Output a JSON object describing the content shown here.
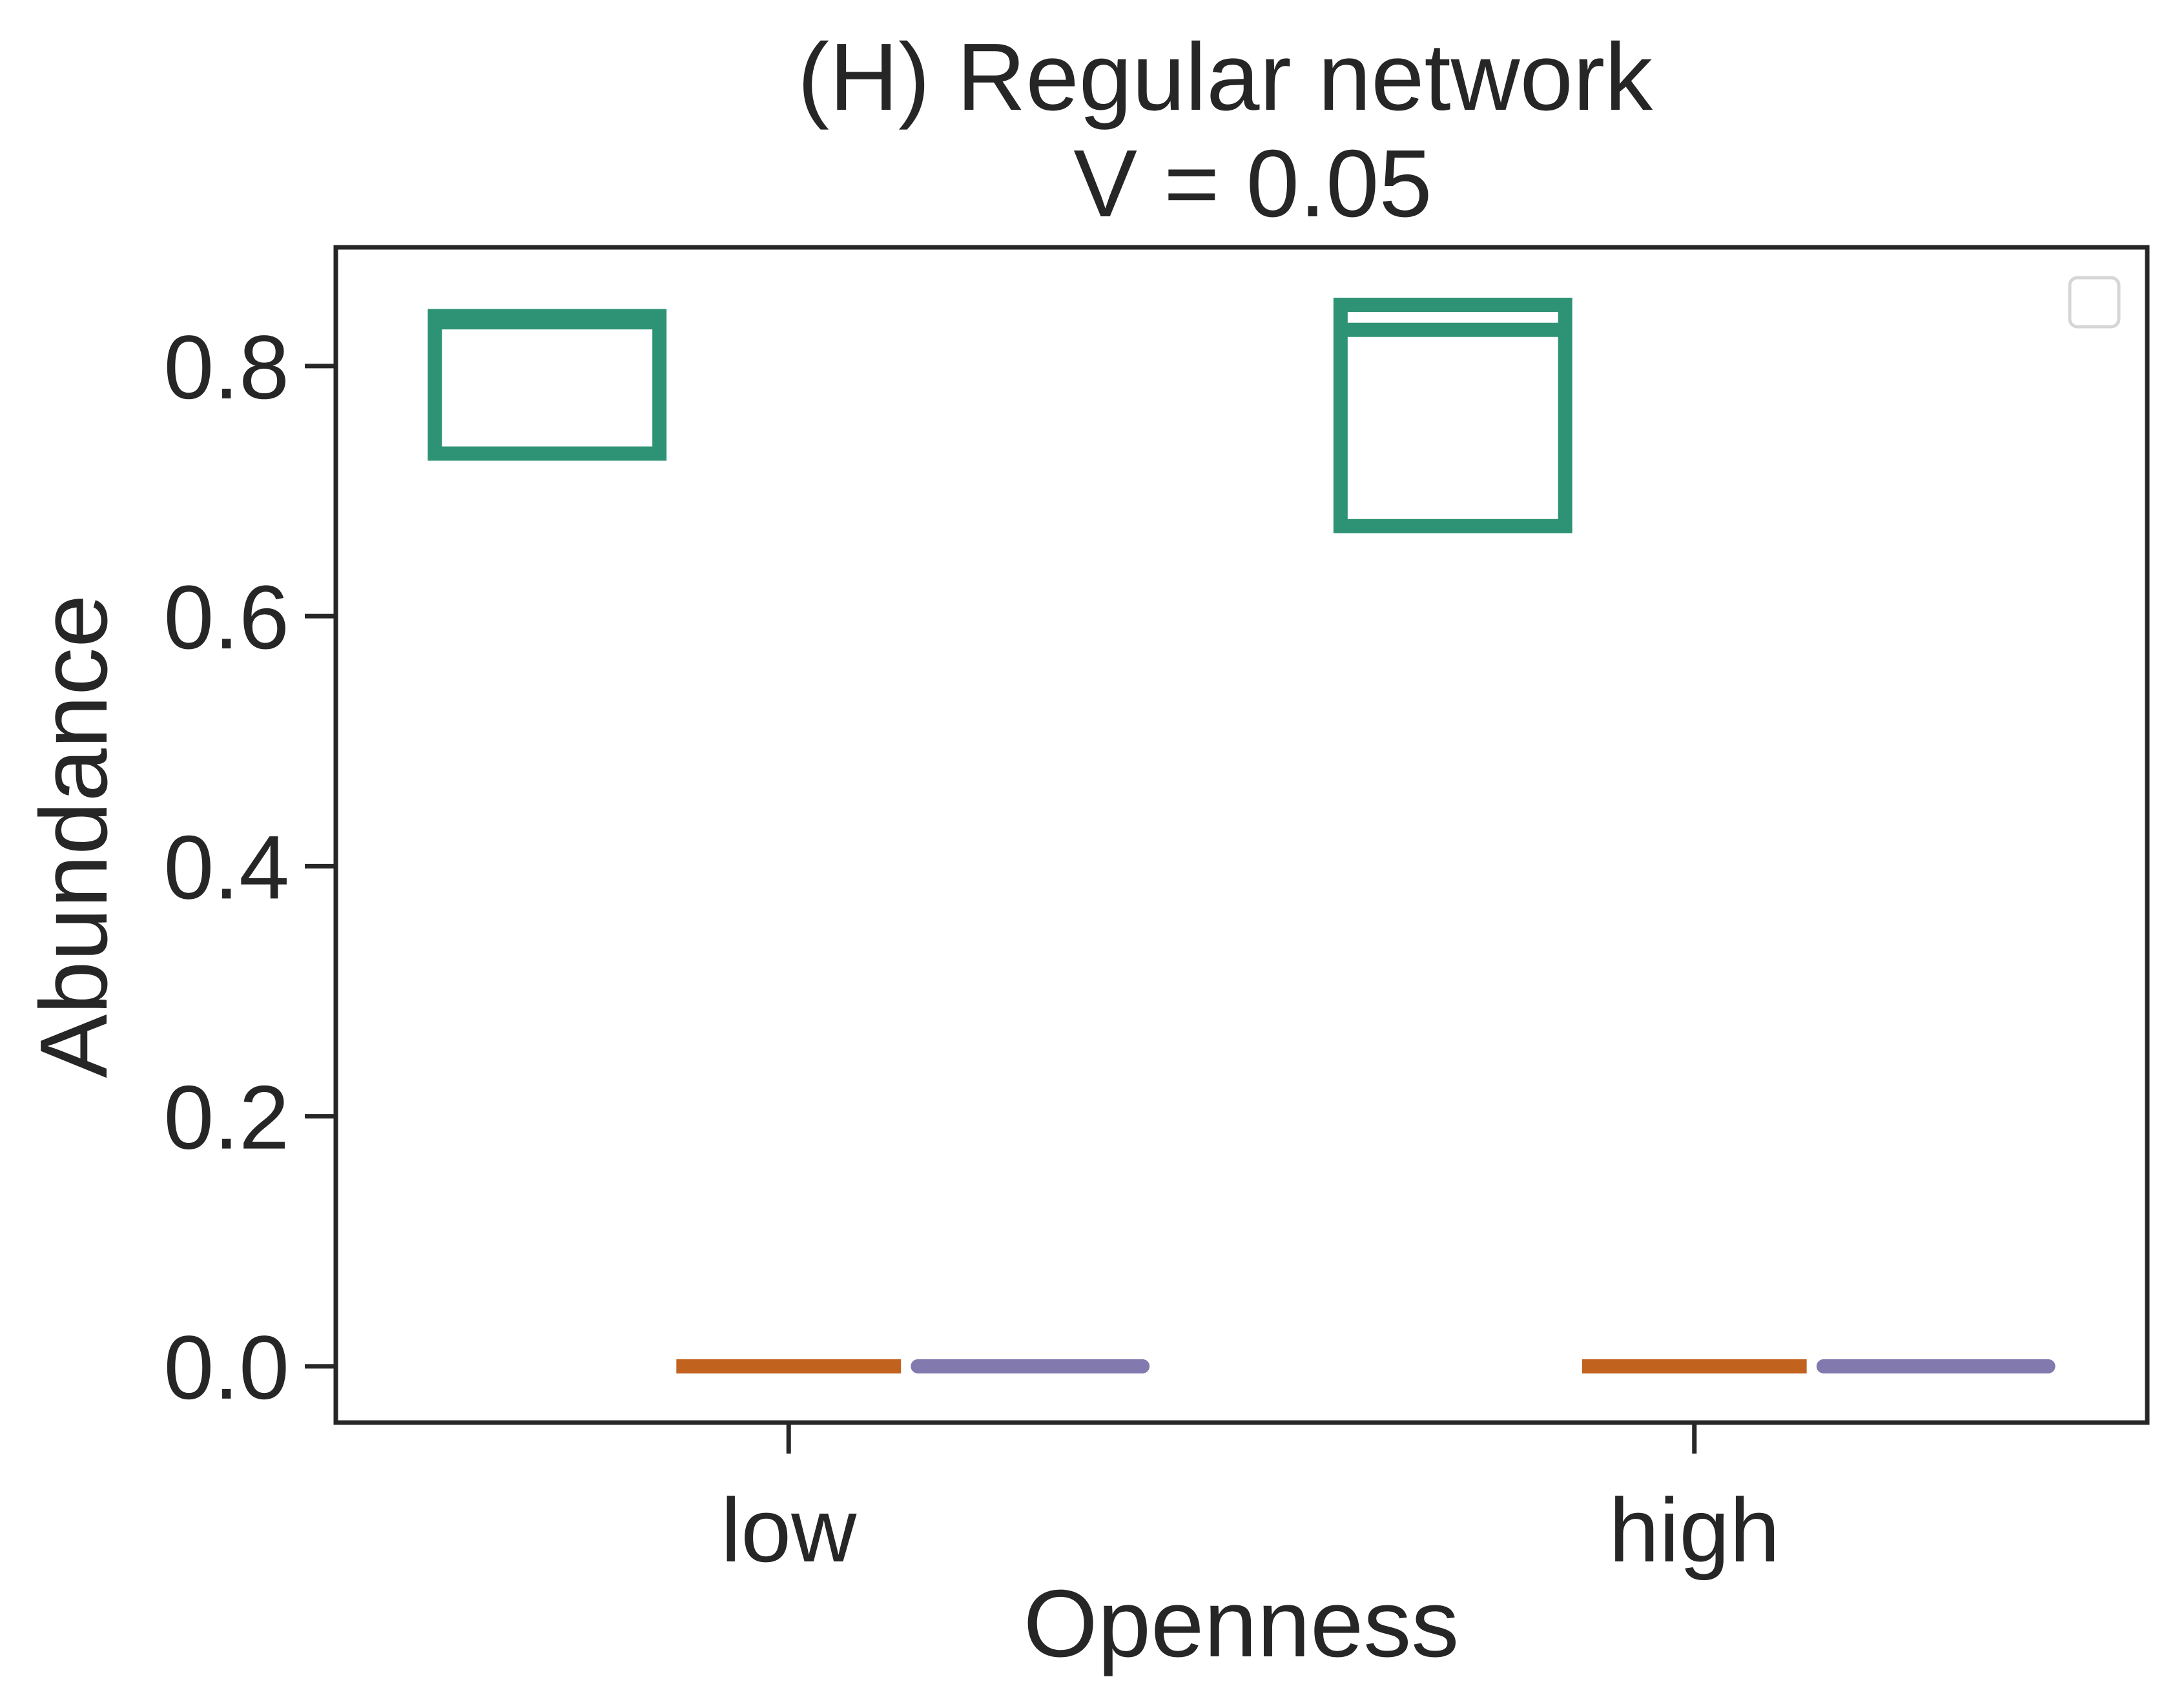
{
  "chart_data": {
    "type": "box",
    "title": "(H) Regular network",
    "subtitle": "V = 0.05",
    "xlabel": "Openness",
    "ylabel": "Abundance",
    "categories": [
      "low",
      "high"
    ],
    "ylim": [
      -0.045,
      0.895
    ],
    "yticks": [
      0.0,
      0.2,
      0.4,
      0.6,
      0.8
    ],
    "ytick_labels": [
      "0.0",
      "0.2",
      "0.4",
      "0.6",
      "0.8"
    ],
    "grid": false,
    "legend": {
      "placement": "top-right",
      "entries": []
    },
    "series": [
      {
        "color": "#2e9274",
        "boxes": [
          {
            "q1": 0.73,
            "median": 0.835,
            "q3": 0.84
          },
          {
            "q1": 0.672,
            "median": 0.829,
            "q3": 0.849
          }
        ]
      },
      {
        "color": "#c2621f",
        "boxes": [
          {
            "q1": 0.0,
            "median": 0.0,
            "q3": 0.0
          },
          {
            "q1": 0.0,
            "median": 0.0,
            "q3": 0.0
          }
        ]
      },
      {
        "color": "#8279ae",
        "boxes": [
          {
            "q1": 0.0,
            "median": 0.0,
            "q3": 0.0
          },
          {
            "q1": 0.0,
            "median": 0.0,
            "q3": 0.0
          }
        ]
      }
    ]
  }
}
